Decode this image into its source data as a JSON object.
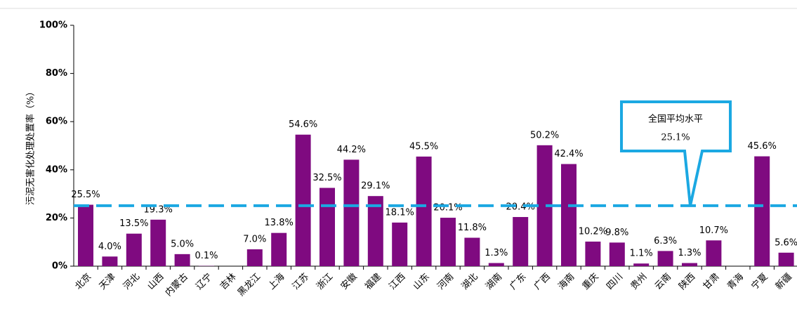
{
  "chart_data": {
    "type": "bar",
    "y_label": "污泥无害化处理处置率（%）",
    "categories": [
      "北京",
      "天津",
      "河北",
      "山西",
      "内蒙古",
      "辽宁",
      "吉林",
      "黑龙江",
      "上海",
      "江苏",
      "浙江",
      "安徽",
      "福建",
      "江西",
      "山东",
      "河南",
      "湖北",
      "湖南",
      "广东",
      "广西",
      "海南",
      "重庆",
      "四川",
      "贵州",
      "云南",
      "陕西",
      "甘肃",
      "青海",
      "宁夏",
      "新疆"
    ],
    "values": [
      25.5,
      4.0,
      13.5,
      19.3,
      5.0,
      0.1,
      null,
      7.0,
      13.8,
      54.6,
      32.5,
      44.2,
      29.1,
      18.1,
      45.5,
      20.1,
      11.8,
      1.3,
      20.4,
      50.2,
      42.4,
      10.2,
      9.8,
      1.1,
      6.3,
      1.3,
      10.7,
      null,
      45.6,
      5.6
    ],
    "value_labels": [
      "25.5%",
      "4.0%",
      "13.5%",
      "19.3%",
      "5.0%",
      "0.1%",
      null,
      "7.0%",
      "13.8%",
      "54.6%",
      "32.5%",
      "44.2%",
      "29.1%",
      "18.1%",
      "45.5%",
      "20.1%",
      "11.8%",
      "1.3%",
      "20.4%",
      "50.2%",
      "42.4%",
      "10.2%",
      "9.8%",
      "1.1%",
      "6.3%",
      "1.3%",
      "10.7%",
      null,
      "45.6%",
      "5.6%"
    ],
    "color": "#7f0a80",
    "ylim": [
      0,
      100
    ],
    "yticks": [
      {
        "value": 0,
        "label": "0%"
      },
      {
        "value": 20,
        "label": "20%"
      },
      {
        "value": 40,
        "label": "40%"
      },
      {
        "value": 60,
        "label": "60%"
      },
      {
        "value": 80,
        "label": "80%"
      },
      {
        "value": 100,
        "label": "100%"
      }
    ],
    "average": {
      "text": "全国平均水平",
      "value": 25.1,
      "value_label": "25.1%",
      "color": "#1ba8e2"
    }
  }
}
